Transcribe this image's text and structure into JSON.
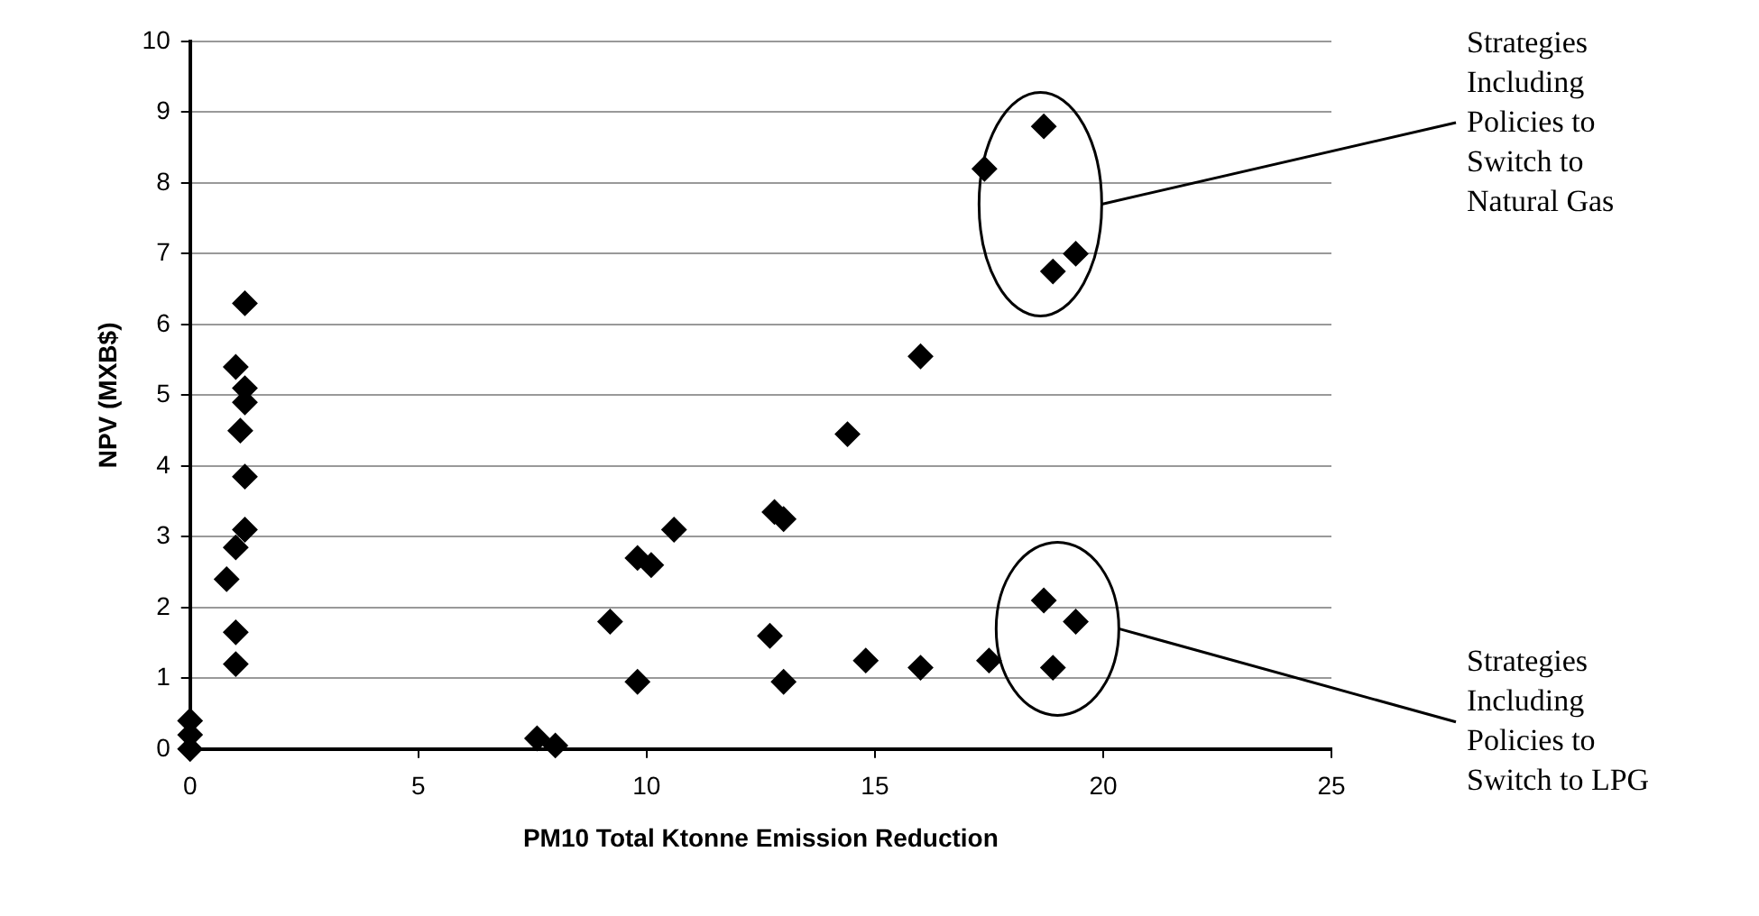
{
  "chart_data": {
    "type": "scatter",
    "xlabel": "PM10 Total Ktonne Emission Reduction",
    "ylabel": "NPV (MXB$)",
    "xlim": [
      0,
      25
    ],
    "xticks": [
      0,
      5,
      10,
      15,
      20,
      25
    ],
    "ylim": [
      0,
      10
    ],
    "yticks": [
      0,
      1,
      2,
      3,
      4,
      5,
      6,
      7,
      8,
      9,
      10
    ],
    "grid": "y",
    "marker": "diamond",
    "legend": false,
    "series": [
      {
        "color": "#000000",
        "x": [
          0,
          0,
          0,
          1.2,
          1.0,
          1.2,
          1.2,
          1.1,
          1.2,
          1.2,
          1.0,
          0.8,
          1.0,
          1.0,
          7.6,
          8.0,
          9.2,
          9.8,
          9.8,
          10.1,
          10.6,
          12.7,
          12.8,
          13.0,
          13.0,
          14.4,
          14.8,
          16.0,
          16.0,
          17.5,
          17.4,
          18.7,
          18.9,
          19.4,
          18.7,
          19.4,
          18.9
        ],
        "values": [
          0.4,
          0.2,
          0,
          6.3,
          5.4,
          5.1,
          4.9,
          4.5,
          3.85,
          3.1,
          2.85,
          2.4,
          1.65,
          1.2,
          0.15,
          0.05,
          1.8,
          0.95,
          2.7,
          2.6,
          3.1,
          1.6,
          3.35,
          3.25,
          0.95,
          4.45,
          1.25,
          5.55,
          1.15,
          1.25,
          8.2,
          8.8,
          6.75,
          7.0,
          2.1,
          1.8,
          1.15
        ]
      }
    ],
    "annotations": [
      "Strategies Including Policies to Switch to Natural Gas",
      "Strategies Including Policies to Switch to LPG"
    ]
  }
}
